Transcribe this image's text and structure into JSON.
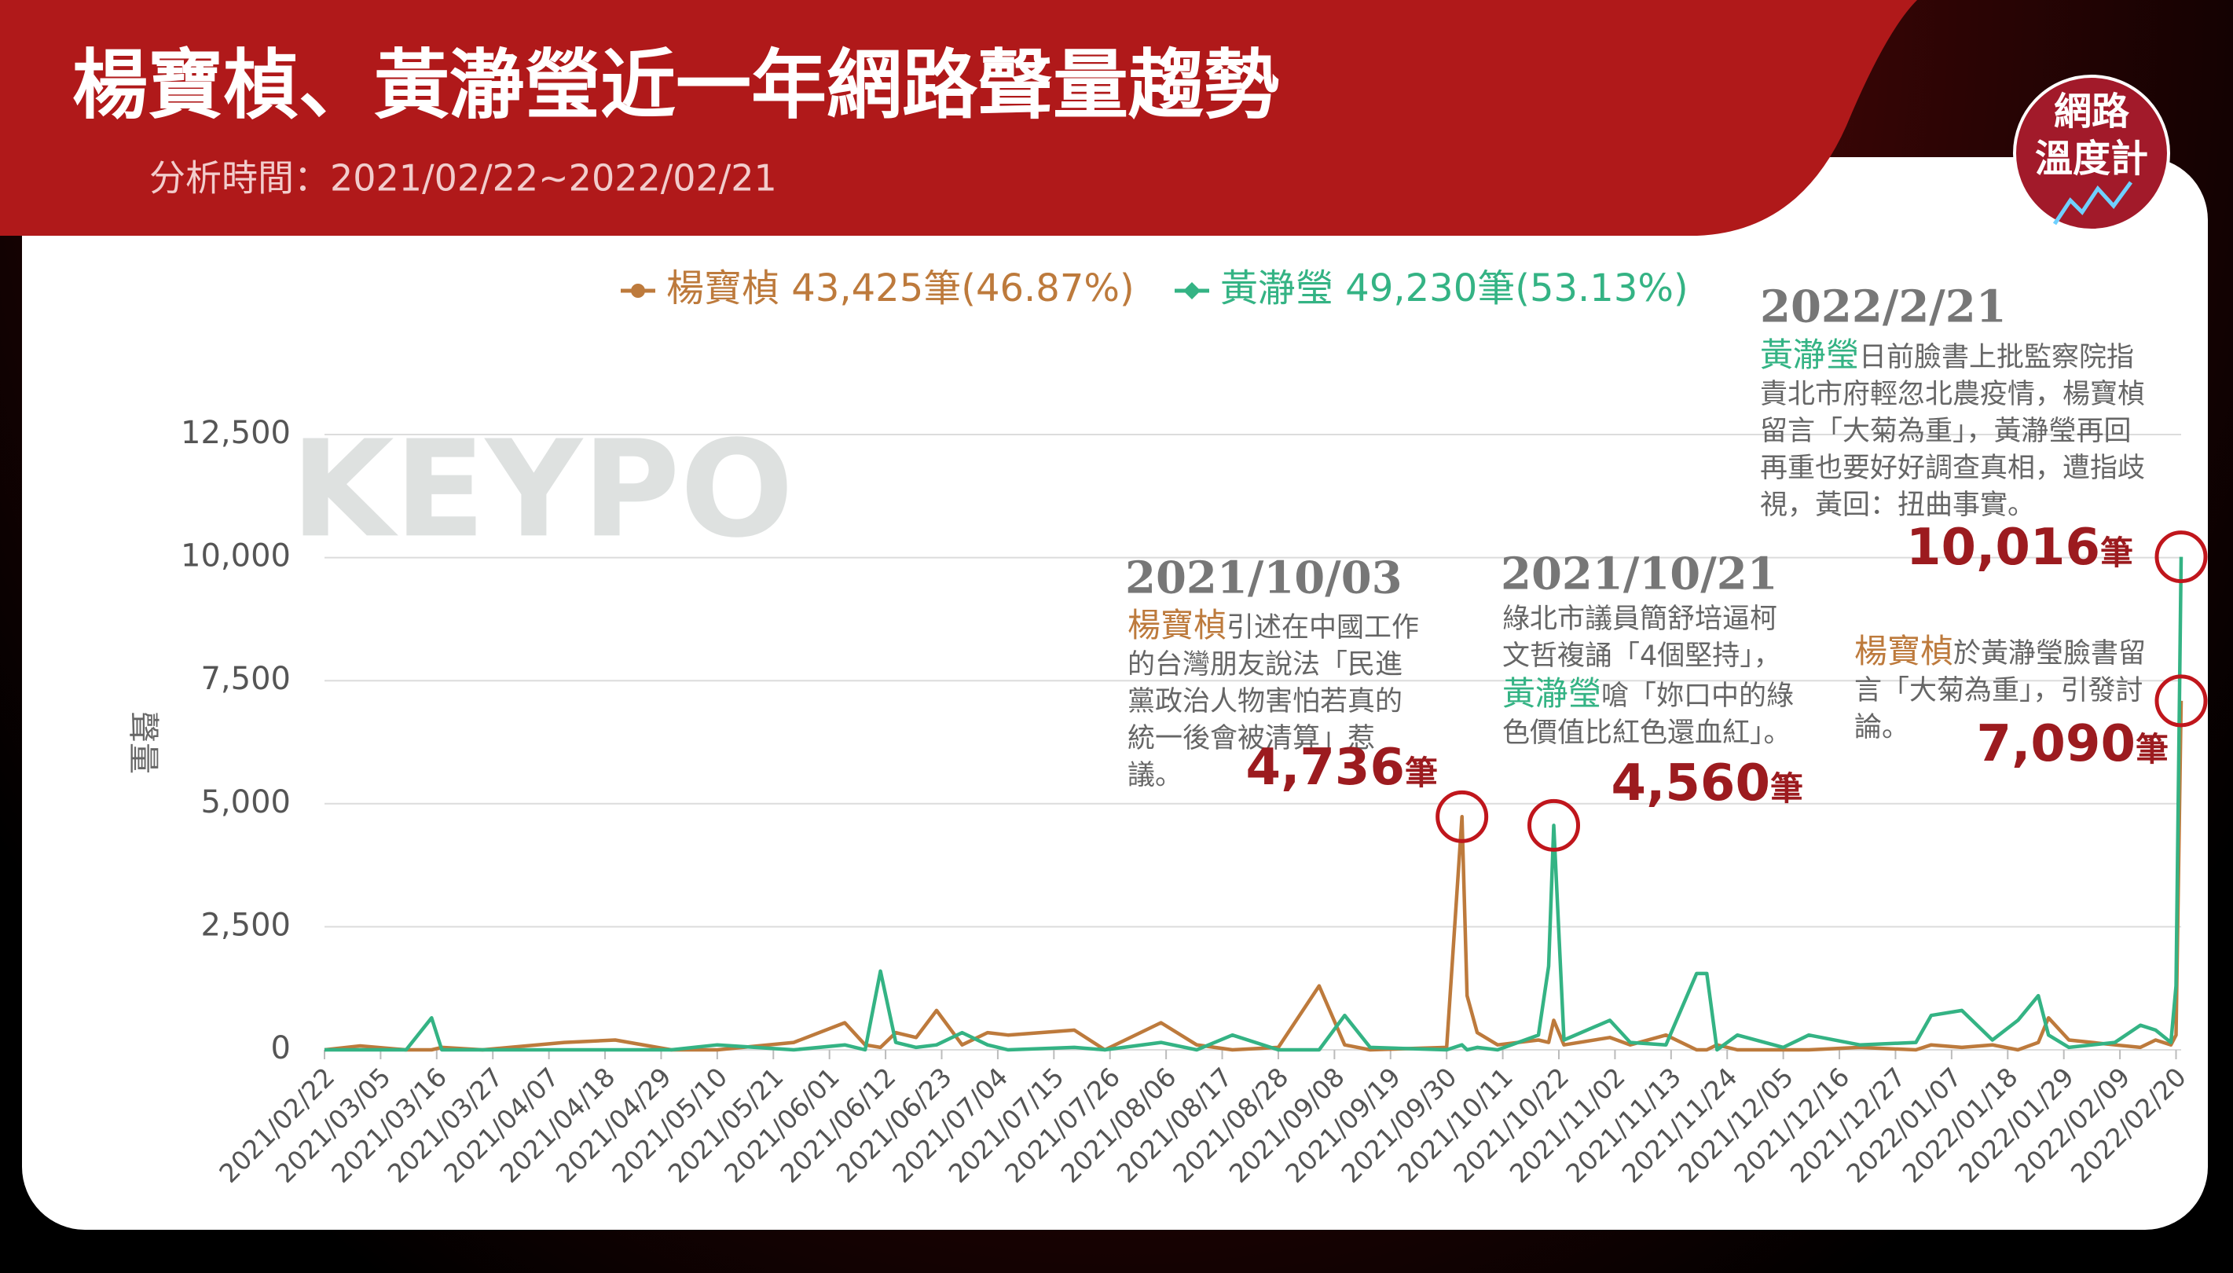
{
  "header": {
    "title": "楊寶楨、黃瀞瑩近一年網路聲量趨勢",
    "subtitle": "分析時間：2021/02/22~2022/02/21",
    "logo": [
      "網路",
      "溫度計"
    ]
  },
  "watermark": "KEYPO",
  "chart_data": {
    "type": "line",
    "ylabel": "聲量",
    "x": [
      "2021/02/22",
      "2021/03/01",
      "2021/03/10",
      "2021/03/15",
      "2021/03/17",
      "2021/03/25",
      "2021/04/10",
      "2021/04/20",
      "2021/05/01",
      "2021/05/10",
      "2021/05/25",
      "2021/06/04",
      "2021/06/08",
      "2021/06/11",
      "2021/06/14",
      "2021/06/18",
      "2021/06/22",
      "2021/06/27",
      "2021/07/02",
      "2021/07/06",
      "2021/07/19",
      "2021/07/25",
      "2021/08/05",
      "2021/08/12",
      "2021/08/19",
      "2021/08/28",
      "2021/09/05",
      "2021/09/10",
      "2021/09/15",
      "2021/09/30",
      "2021/10/03",
      "2021/10/04",
      "2021/10/06",
      "2021/10/10",
      "2021/10/18",
      "2021/10/20",
      "2021/10/21",
      "2021/10/23",
      "2021/11/01",
      "2021/11/05",
      "2021/11/12",
      "2021/11/18",
      "2021/11/20",
      "2021/11/22",
      "2021/11/26",
      "2021/12/05",
      "2021/12/10",
      "2021/12/20",
      "2021/12/31",
      "2022/01/03",
      "2022/01/09",
      "2022/01/15",
      "2022/01/20",
      "2022/01/24",
      "2022/01/26",
      "2022/01/30",
      "2022/02/08",
      "2022/02/13",
      "2022/02/16",
      "2022/02/19",
      "2022/02/20",
      "2022/02/21"
    ],
    "series": [
      {
        "name": "楊寶楨",
        "legend_note": "43,425筆(46.87%)",
        "color": "#bd7a3c",
        "marker": "circle",
        "values": [
          0,
          80,
          0,
          0,
          50,
          0,
          150,
          200,
          0,
          0,
          150,
          550,
          100,
          50,
          350,
          250,
          800,
          100,
          350,
          300,
          400,
          0,
          550,
          100,
          0,
          50,
          1300,
          100,
          0,
          50,
          4736,
          1100,
          350,
          100,
          200,
          150,
          600,
          100,
          250,
          100,
          300,
          0,
          0,
          100,
          0,
          0,
          0,
          50,
          0,
          100,
          50,
          100,
          0,
          150,
          650,
          200,
          100,
          50,
          200,
          100,
          300,
          7090
        ]
      },
      {
        "name": "黃瀞瑩",
        "legend_note": "49,230筆(53.13%)",
        "color": "#34b384",
        "marker": "diamond",
        "values": [
          0,
          0,
          0,
          650,
          0,
          0,
          0,
          0,
          0,
          100,
          0,
          100,
          0,
          1600,
          150,
          50,
          100,
          350,
          100,
          0,
          50,
          0,
          150,
          0,
          300,
          0,
          0,
          700,
          50,
          0,
          100,
          0,
          50,
          0,
          300,
          1700,
          4560,
          200,
          600,
          150,
          100,
          1550,
          1550,
          0,
          300,
          50,
          300,
          100,
          150,
          700,
          800,
          200,
          600,
          1100,
          300,
          50,
          150,
          500,
          400,
          150,
          1300,
          10016
        ]
      }
    ],
    "xlim": [
      "2021/02/22",
      "2022/02/21"
    ],
    "xticks": [
      "2021/02/22",
      "2021/03/05",
      "2021/03/16",
      "2021/03/27",
      "2021/04/07",
      "2021/04/18",
      "2021/04/29",
      "2021/05/10",
      "2021/05/21",
      "2021/06/01",
      "2021/06/12",
      "2021/06/23",
      "2021/07/04",
      "2021/07/15",
      "2021/07/26",
      "2021/08/06",
      "2021/08/17",
      "2021/08/28",
      "2021/09/08",
      "2021/09/19",
      "2021/09/30",
      "2021/10/11",
      "2021/10/22",
      "2021/11/02",
      "2021/11/13",
      "2021/11/24",
      "2021/12/05",
      "2021/12/16",
      "2021/12/27",
      "2022/01/07",
      "2022/01/18",
      "2022/01/29",
      "2022/02/09",
      "2022/02/20"
    ],
    "ylim": [
      0,
      12500
    ],
    "yticks": [
      0,
      {
        "value": 2500,
        "label": "2,500"
      },
      {
        "value": 5000,
        "label": "5,000"
      },
      {
        "value": 7500,
        "label": "7,500"
      },
      {
        "value": 10000,
        "label": "10,000"
      },
      {
        "value": 12500,
        "label": "12,500"
      }
    ],
    "grid": true,
    "legend": "top",
    "annotations": [
      {
        "x": "2021/10/03",
        "series": 0,
        "date_label": "2021/10/03",
        "parts": [
          {
            "text": "楊寶楨",
            "series": 0
          },
          {
            "text": "引述在中國工作的台灣朋友說法「民進黨政治人物害怕若真的統一後會被清算」惹議。"
          }
        ],
        "value": 4736,
        "value_label": "4,736",
        "unit": "筆"
      },
      {
        "x": "2021/10/21",
        "series": 1,
        "date_label": "2021/10/21",
        "parts": [
          {
            "text": "綠北市議員簡舒培逼柯文哲複誦「4個堅持」，"
          },
          {
            "text": "黃瀞瑩",
            "series": 1
          },
          {
            "text": "嗆「妳口中的綠色價值比紅色還血紅」。"
          }
        ],
        "value": 4560,
        "value_label": "4,560",
        "unit": "筆"
      },
      {
        "x": "2022/02/21",
        "series": 1,
        "date_label": "2022/2/21",
        "parts": [
          {
            "text": "黃瀞瑩",
            "series": 1
          },
          {
            "text": "日前臉書上批監察院指責北市府輕忽北農疫情，楊寶楨留言「大菊為重」，黃瀞瑩再回再重也要好好調查真相，遭指歧視，黃回：扭曲事實。"
          }
        ],
        "value": 10016,
        "value_label": "10,016",
        "unit": "筆"
      },
      {
        "x": "2022/02/21",
        "series": 0,
        "parts": [
          {
            "text": "楊寶楨",
            "series": 0
          },
          {
            "text": "於黃瀞瑩臉書留言「大菊為重」，引發討論。"
          }
        ],
        "value": 7090,
        "value_label": "7,090",
        "unit": "筆"
      }
    ]
  }
}
